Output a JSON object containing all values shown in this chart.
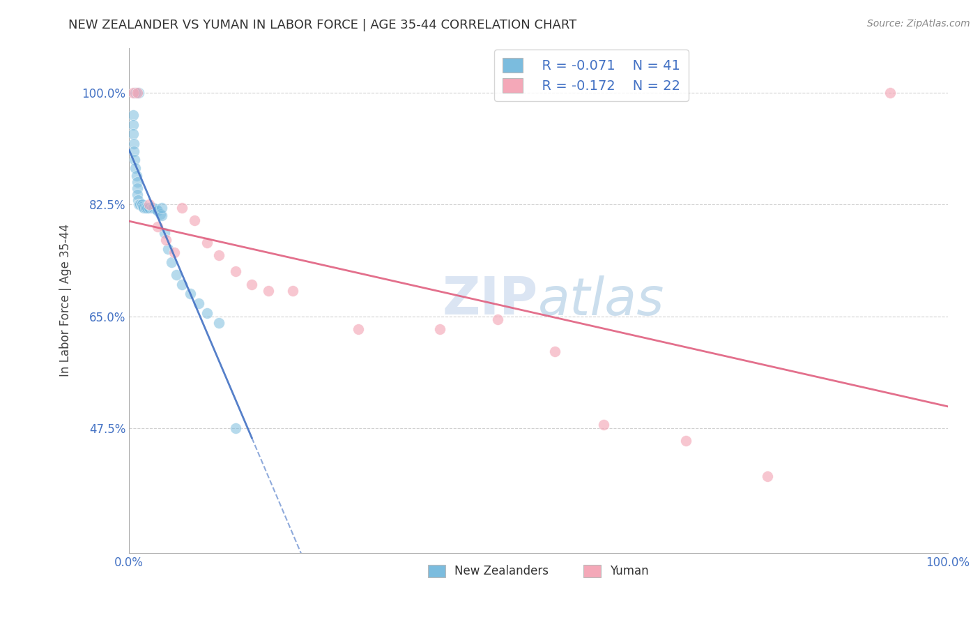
{
  "title": "NEW ZEALANDER VS YUMAN IN LABOR FORCE | AGE 35-44 CORRELATION CHART",
  "source_text": "Source: ZipAtlas.com",
  "ylabel": "In Labor Force | Age 35-44",
  "xlim": [
    0.0,
    1.0
  ],
  "ylim": [
    0.28,
    1.07
  ],
  "x_tick_values": [
    0.0,
    1.0
  ],
  "x_tick_labels": [
    "0.0%",
    "100.0%"
  ],
  "y_tick_values": [
    0.475,
    0.65,
    0.825,
    1.0
  ],
  "y_tick_labels": [
    "47.5%",
    "65.0%",
    "82.5%",
    "100.0%"
  ],
  "blue_label": "New Zealanders",
  "pink_label": "Yuman",
  "legend_R_blue": "R = -0.071",
  "legend_N_blue": "N = 41",
  "legend_R_pink": "R = -0.172",
  "legend_N_pink": "N = 22",
  "blue_color": "#7bbcde",
  "pink_color": "#f4a8b8",
  "blue_line_color": "#4472c4",
  "pink_line_color": "#e06080",
  "blue_points_x": [
    0.008,
    0.012,
    0.005,
    0.005,
    0.005,
    0.006,
    0.006,
    0.007,
    0.008,
    0.009,
    0.01,
    0.01,
    0.01,
    0.011,
    0.012,
    0.013,
    0.014,
    0.015,
    0.016,
    0.017,
    0.018,
    0.02,
    0.022,
    0.025,
    0.028,
    0.03,
    0.033,
    0.035,
    0.038,
    0.04,
    0.043,
    0.048,
    0.052,
    0.058,
    0.065,
    0.075,
    0.085,
    0.095,
    0.11,
    0.13,
    0.04
  ],
  "blue_points_y": [
    1.0,
    1.0,
    0.965,
    0.95,
    0.935,
    0.92,
    0.908,
    0.895,
    0.882,
    0.87,
    0.86,
    0.85,
    0.84,
    0.832,
    0.825,
    0.825,
    0.825,
    0.825,
    0.825,
    0.822,
    0.82,
    0.82,
    0.82,
    0.82,
    0.82,
    0.82,
    0.818,
    0.815,
    0.81,
    0.808,
    0.78,
    0.755,
    0.735,
    0.715,
    0.7,
    0.685,
    0.67,
    0.655,
    0.64,
    0.475,
    0.82
  ],
  "pink_points_x": [
    0.005,
    0.01,
    0.025,
    0.035,
    0.045,
    0.055,
    0.065,
    0.08,
    0.095,
    0.11,
    0.13,
    0.15,
    0.17,
    0.2,
    0.28,
    0.38,
    0.45,
    0.52,
    0.58,
    0.68,
    0.78,
    0.93
  ],
  "pink_points_y": [
    1.0,
    1.0,
    0.825,
    0.79,
    0.77,
    0.75,
    0.82,
    0.8,
    0.765,
    0.745,
    0.72,
    0.7,
    0.69,
    0.69,
    0.63,
    0.63,
    0.645,
    0.595,
    0.48,
    0.455,
    0.4,
    1.0
  ]
}
